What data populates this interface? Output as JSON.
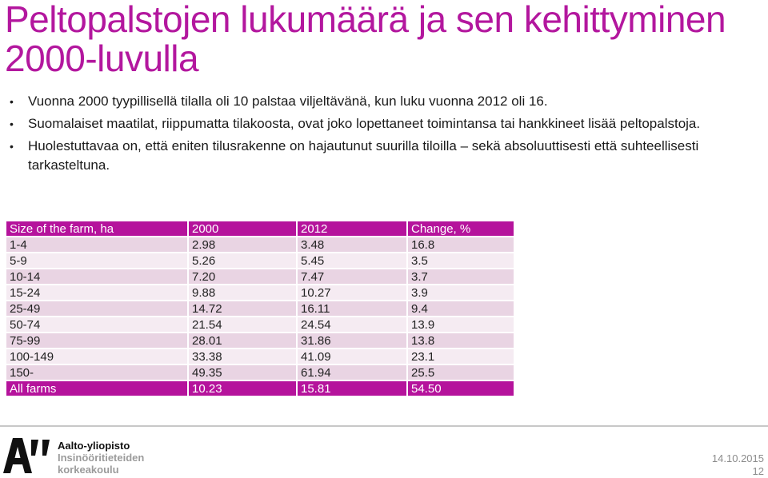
{
  "slide": {
    "title": "Peltopalstojen lukumäärä ja sen kehittyminen 2000-luvulla",
    "bullets": [
      "Vuonna 2000 tyypillisellä tilalla oli 10 palstaa viljeltävänä, kun luku vuonna 2012 oli 16.",
      "Suomalaiset maatilat, riippumatta tilakoosta, ovat joko lopettaneet toimintansa tai hankkineet lisää peltopalstoja.",
      "Huolestuttavaa on, että eniten tilusrakenne on hajautunut suurilla tiloilla – sekä absoluuttisesti että suhteellisesti tarkasteltuna."
    ],
    "bullet_symbol": "•"
  },
  "table": {
    "headers": [
      "Size of the farm, ha",
      "2000",
      "2012",
      "Change, %"
    ],
    "rows": [
      [
        "1-4",
        "2.98",
        "3.48",
        "16.8"
      ],
      [
        "5-9",
        "5.26",
        "5.45",
        "3.5"
      ],
      [
        "10-14",
        "7.20",
        "7.47",
        "3.7"
      ],
      [
        "15-24",
        "9.88",
        "10.27",
        "3.9"
      ],
      [
        "25-49",
        "14.72",
        "16.11",
        "9.4"
      ],
      [
        "50-74",
        "21.54",
        "24.54",
        "13.9"
      ],
      [
        "75-99",
        "28.01",
        "31.86",
        "13.8"
      ],
      [
        "100-149",
        "33.38",
        "41.09",
        "23.1"
      ],
      [
        "150-",
        "49.35",
        "61.94",
        "25.5"
      ],
      [
        "All farms",
        "10.23",
        "15.81",
        "54.50"
      ]
    ]
  },
  "footer": {
    "logo_lines": [
      "Aalto-yliopisto",
      "Insinööritieteiden",
      "korkeakoulu"
    ],
    "date": "14.10.2015",
    "page": "12"
  },
  "colors": {
    "accent": "#b3179e",
    "header_bg": "#b5139c",
    "row_odd": "#e9d4e3",
    "row_even": "#f5ebf2"
  }
}
